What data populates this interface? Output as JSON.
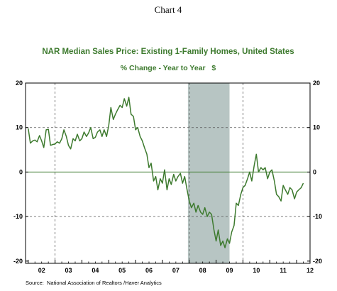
{
  "caption": "Chart 4",
  "chart_data": {
    "type": "line",
    "title": "NAR Median Sales Price: Existing 1-Family Homes, United States",
    "subtitle": "% Change - Year to Year   $",
    "source": "Source:  National Association of Realtors /Haver Analytics",
    "x_tick_labels": [
      "02",
      "03",
      "04",
      "05",
      "06",
      "07",
      "08",
      "09",
      "10",
      "11",
      "12"
    ],
    "y_ticks": [
      20,
      10,
      0,
      -10,
      -20
    ],
    "y_tick_labels": [
      "20",
      "10",
      "0",
      "-10",
      "-20"
    ],
    "ylim": [
      -20.5,
      20
    ],
    "xlim": [
      2001.9,
      2012.5
    ],
    "grid": true,
    "shaded_regions": [
      {
        "start": 2007.95,
        "end": 2009.5
      }
    ],
    "colors": {
      "line": "#3d7a2e",
      "shade": "#b7c5c3",
      "zero_line": "#3d7a2e",
      "grid": "#555555"
    },
    "series": [
      {
        "name": "",
        "x": [
          2002.0,
          2002.08,
          2002.17,
          2002.25,
          2002.33,
          2002.42,
          2002.5,
          2002.58,
          2002.67,
          2002.75,
          2002.83,
          2002.92,
          2003.0,
          2003.08,
          2003.17,
          2003.25,
          2003.33,
          2003.42,
          2003.5,
          2003.58,
          2003.67,
          2003.75,
          2003.83,
          2003.92,
          2004.0,
          2004.08,
          2004.17,
          2004.25,
          2004.33,
          2004.42,
          2004.5,
          2004.58,
          2004.67,
          2004.75,
          2004.83,
          2004.92,
          2005.0,
          2005.08,
          2005.17,
          2005.25,
          2005.33,
          2005.42,
          2005.5,
          2005.58,
          2005.67,
          2005.75,
          2005.83,
          2005.92,
          2006.0,
          2006.08,
          2006.17,
          2006.25,
          2006.33,
          2006.42,
          2006.5,
          2006.58,
          2006.67,
          2006.75,
          2006.83,
          2006.92,
          2007.0,
          2007.08,
          2007.17,
          2007.25,
          2007.33,
          2007.42,
          2007.5,
          2007.58,
          2007.67,
          2007.75,
          2007.83,
          2007.92,
          2008.0,
          2008.08,
          2008.17,
          2008.25,
          2008.33,
          2008.42,
          2008.5,
          2008.58,
          2008.67,
          2008.75,
          2008.83,
          2008.92,
          2009.0,
          2009.08,
          2009.17,
          2009.25,
          2009.33,
          2009.42,
          2009.5,
          2009.58,
          2009.67,
          2009.75,
          2009.83,
          2009.92,
          2010.0,
          2010.08,
          2010.17,
          2010.25,
          2010.33,
          2010.42,
          2010.5,
          2010.58,
          2010.67,
          2010.75,
          2010.83,
          2010.92,
          2011.0,
          2011.08,
          2011.17,
          2011.25,
          2011.33,
          2011.42,
          2011.5,
          2011.58,
          2011.67,
          2011.75,
          2011.83,
          2011.92,
          2012.0,
          2012.08,
          2012.17,
          2012.25
        ],
        "values": [
          9.8,
          6.5,
          7.0,
          7.2,
          6.8,
          8.2,
          7.0,
          5.5,
          9.5,
          9.6,
          6.0,
          6.2,
          6.3,
          6.8,
          6.5,
          7.5,
          9.5,
          8.0,
          6.0,
          5.2,
          7.5,
          7.0,
          8.5,
          7.0,
          7.5,
          9.0,
          8.0,
          8.8,
          10.0,
          7.5,
          7.8,
          9.0,
          9.5,
          8.0,
          9.5,
          8.0,
          10.5,
          14.5,
          11.8,
          13.0,
          14.0,
          15.0,
          14.5,
          16.5,
          14.8,
          16.8,
          13.0,
          12.5,
          9.5,
          10.0,
          8.0,
          7.0,
          5.5,
          4.0,
          1.0,
          2.0,
          -2.0,
          -1.0,
          -4.0,
          -1.5,
          -2.5,
          0.5,
          -4.0,
          -1.5,
          -2.8,
          -0.5,
          -2.0,
          -1.0,
          -0.3,
          -2.5,
          -1.0,
          -4.0,
          -6.5,
          -8.0,
          -7.0,
          -9.0,
          -7.5,
          -9.0,
          -9.5,
          -8.0,
          -10.0,
          -9.0,
          -9.5,
          -13.0,
          -15.5,
          -13.0,
          -16.5,
          -15.5,
          -17.0,
          -15.0,
          -16.0,
          -13.5,
          -12.0,
          -7.0,
          -7.5,
          -5.0,
          -3.5,
          -3.0,
          -1.5,
          0.0,
          -2.0,
          1.5,
          4.0,
          0.0,
          1.0,
          0.5,
          1.0,
          -1.5,
          0.0,
          0.5,
          -2.0,
          -5.0,
          -5.5,
          -6.5,
          -3.0,
          -4.0,
          -5.0,
          -3.5,
          -4.0,
          -6.0,
          -4.5,
          -4.0,
          -3.5,
          -2.5
        ]
      }
    ]
  }
}
